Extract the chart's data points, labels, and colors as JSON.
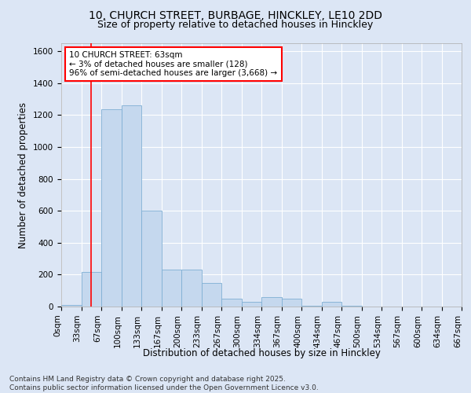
{
  "title_line1": "10, CHURCH STREET, BURBAGE, HINCKLEY, LE10 2DD",
  "title_line2": "Size of property relative to detached houses in Hinckley",
  "xlabel": "Distribution of detached houses by size in Hinckley",
  "ylabel": "Number of detached properties",
  "bar_values": [
    10,
    215,
    1235,
    1260,
    600,
    230,
    230,
    150,
    50,
    30,
    60,
    50,
    5,
    30,
    5,
    0,
    0,
    0,
    0,
    0
  ],
  "bin_labels": [
    "0sqm",
    "33sqm",
    "67sqm",
    "100sqm",
    "133sqm",
    "167sqm",
    "200sqm",
    "233sqm",
    "267sqm",
    "300sqm",
    "334sqm",
    "367sqm",
    "400sqm",
    "434sqm",
    "467sqm",
    "500sqm",
    "534sqm",
    "567sqm",
    "600sqm",
    "634sqm",
    "667sqm"
  ],
  "bar_color": "#c5d8ee",
  "bar_edge_color": "#7fafd4",
  "annotation_text_line1": "10 CHURCH STREET: 63sqm",
  "annotation_text_line2": "← 3% of detached houses are smaller (128)",
  "annotation_text_line3": "96% of semi-detached houses are larger (3,668) →",
  "annotation_box_color": "white",
  "annotation_box_edge_color": "red",
  "vline_color": "red",
  "vline_x": 1.5,
  "ylim": [
    0,
    1650
  ],
  "yticks": [
    0,
    200,
    400,
    600,
    800,
    1000,
    1200,
    1400,
    1600
  ],
  "background_color": "#dce6f5",
  "plot_area_color": "#dce6f5",
  "footer_line1": "Contains HM Land Registry data © Crown copyright and database right 2025.",
  "footer_line2": "Contains public sector information licensed under the Open Government Licence v3.0.",
  "title_fontsize": 10,
  "subtitle_fontsize": 9,
  "axis_label_fontsize": 8.5,
  "tick_fontsize": 7.5,
  "annotation_fontsize": 7.5,
  "footer_fontsize": 6.5
}
